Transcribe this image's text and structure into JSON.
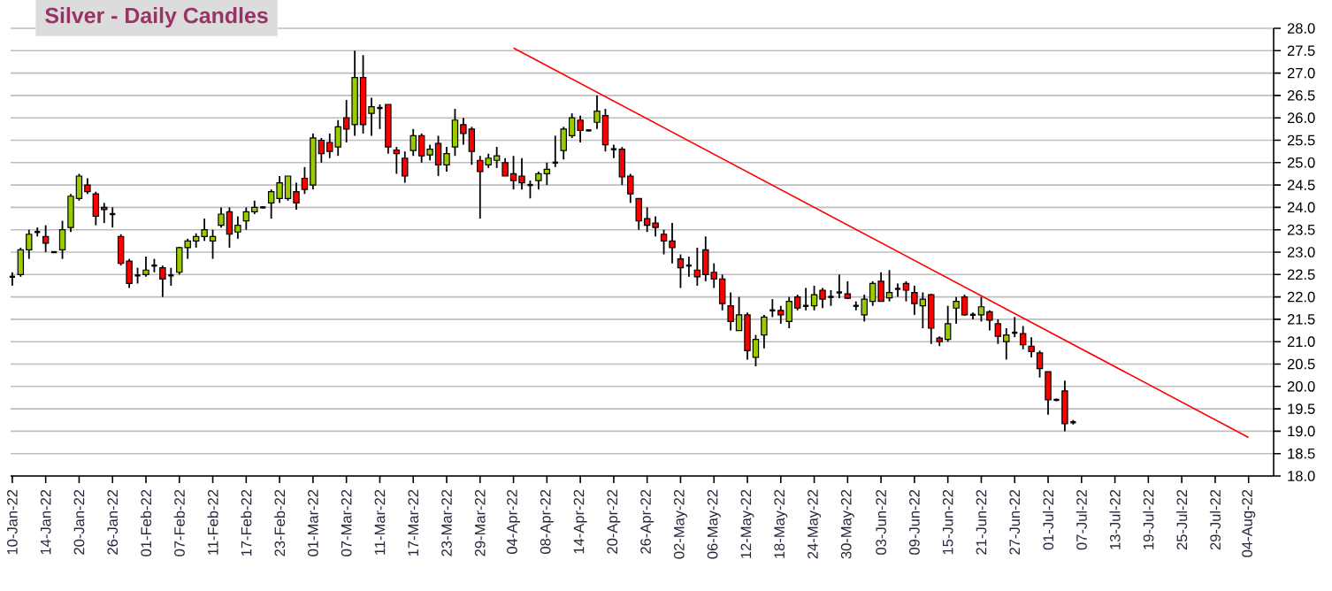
{
  "chart_data": {
    "type": "candlestick",
    "title": "Silver - Daily Candles",
    "categories": [
      "10-Jan-22",
      null,
      null,
      null,
      "14-Jan-22",
      null,
      null,
      null,
      "20-Jan-22",
      null,
      null,
      null,
      "26-Jan-22",
      null,
      null,
      null,
      "01-Feb-22",
      null,
      null,
      null,
      "07-Feb-22",
      null,
      null,
      null,
      "11-Feb-22",
      null,
      null,
      null,
      "17-Feb-22",
      null,
      null,
      null,
      "23-Feb-22",
      null,
      null,
      null,
      "01-Mar-22",
      null,
      null,
      null,
      "07-Mar-22",
      null,
      null,
      null,
      "11-Mar-22",
      null,
      null,
      null,
      "17-Mar-22",
      null,
      null,
      null,
      "23-Mar-22",
      null,
      null,
      null,
      "29-Mar-22",
      null,
      null,
      null,
      "04-Apr-22",
      null,
      null,
      null,
      "08-Apr-22",
      null,
      null,
      null,
      "14-Apr-22",
      null,
      null,
      null,
      "20-Apr-22",
      null,
      null,
      null,
      "26-Apr-22",
      null,
      null,
      null,
      "02-May-22",
      null,
      null,
      null,
      "06-May-22",
      null,
      null,
      null,
      "12-May-22",
      null,
      null,
      null,
      "18-May-22",
      null,
      null,
      null,
      "24-May-22",
      null,
      null,
      null,
      "30-May-22",
      null,
      null,
      null,
      "03-Jun-22",
      null,
      null,
      null,
      "09-Jun-22",
      null,
      null,
      null,
      "15-Jun-22",
      null,
      null,
      null,
      "21-Jun-22",
      null,
      null,
      null,
      "27-Jun-22",
      null,
      null,
      null,
      "01-Jul-22",
      null,
      null,
      null,
      "07-Jul-22",
      null,
      null,
      null,
      "13-Jul-22",
      null,
      null,
      null,
      "19-Jul-22",
      null,
      null,
      null,
      "25-Jul-22",
      null,
      null,
      null,
      "29-Jul-22",
      null,
      null,
      null,
      "04-Aug-22"
    ],
    "ohlc": [
      [
        22.45,
        22.55,
        22.25,
        22.45
      ],
      [
        22.5,
        23.1,
        22.45,
        23.05
      ],
      [
        23.05,
        23.5,
        22.85,
        23.4
      ],
      [
        23.45,
        23.55,
        23.35,
        23.45
      ],
      [
        23.35,
        23.6,
        23.0,
        23.2
      ],
      [
        23.0,
        23.02,
        22.98,
        23.0
      ],
      [
        23.05,
        23.7,
        22.85,
        23.5
      ],
      [
        23.55,
        24.3,
        23.45,
        24.25
      ],
      [
        24.2,
        24.75,
        24.15,
        24.7
      ],
      [
        24.5,
        24.65,
        24.3,
        24.35
      ],
      [
        24.3,
        24.35,
        23.6,
        23.8
      ],
      [
        24.0,
        24.1,
        23.65,
        23.95
      ],
      [
        23.85,
        24.0,
        23.55,
        23.85
      ],
      [
        23.35,
        23.4,
        22.7,
        22.75
      ],
      [
        22.8,
        22.85,
        22.2,
        22.3
      ],
      [
        22.48,
        22.65,
        22.3,
        22.48
      ],
      [
        22.5,
        22.9,
        22.45,
        22.6
      ],
      [
        22.7,
        22.85,
        22.55,
        22.7
      ],
      [
        22.65,
        22.7,
        22.0,
        22.4
      ],
      [
        22.48,
        22.65,
        22.25,
        22.48
      ],
      [
        22.55,
        23.12,
        22.5,
        23.1
      ],
      [
        23.1,
        23.3,
        22.85,
        23.25
      ],
      [
        23.25,
        23.42,
        23.1,
        23.35
      ],
      [
        23.35,
        23.75,
        23.25,
        23.5
      ],
      [
        23.25,
        23.5,
        22.85,
        23.35
      ],
      [
        23.6,
        24.0,
        23.55,
        23.85
      ],
      [
        23.9,
        24.0,
        23.1,
        23.4
      ],
      [
        23.45,
        23.8,
        23.3,
        23.6
      ],
      [
        23.7,
        24.0,
        23.5,
        23.9
      ],
      [
        23.9,
        24.15,
        23.85,
        24.0
      ],
      [
        24.0,
        24.02,
        23.98,
        24.0
      ],
      [
        24.1,
        24.4,
        23.75,
        24.35
      ],
      [
        24.2,
        24.7,
        24.1,
        24.55
      ],
      [
        24.2,
        24.7,
        24.15,
        24.7
      ],
      [
        24.35,
        24.55,
        23.95,
        24.1
      ],
      [
        24.65,
        24.9,
        24.3,
        24.4
      ],
      [
        24.5,
        25.65,
        24.4,
        25.55
      ],
      [
        25.5,
        25.55,
        25.0,
        25.2
      ],
      [
        25.45,
        25.65,
        25.1,
        25.25
      ],
      [
        25.35,
        25.95,
        25.15,
        25.8
      ],
      [
        26.0,
        26.4,
        25.45,
        25.75
      ],
      [
        25.85,
        27.5,
        25.6,
        26.9
      ],
      [
        26.9,
        27.4,
        25.65,
        25.85
      ],
      [
        26.1,
        26.45,
        25.6,
        26.25
      ],
      [
        26.22,
        26.3,
        25.75,
        26.22
      ],
      [
        26.3,
        26.3,
        25.2,
        25.35
      ],
      [
        25.28,
        25.35,
        24.75,
        25.2
      ],
      [
        25.1,
        25.25,
        24.55,
        24.7
      ],
      [
        25.27,
        25.75,
        25.15,
        25.6
      ],
      [
        25.6,
        25.65,
        25.0,
        25.15
      ],
      [
        25.17,
        25.4,
        25.05,
        25.3
      ],
      [
        25.43,
        25.6,
        24.7,
        24.95
      ],
      [
        24.95,
        25.35,
        24.8,
        25.2
      ],
      [
        25.35,
        26.2,
        25.15,
        25.95
      ],
      [
        25.85,
        26.0,
        25.4,
        25.65
      ],
      [
        25.75,
        25.8,
        24.95,
        25.25
      ],
      [
        25.05,
        25.15,
        23.75,
        24.8
      ],
      [
        24.95,
        25.2,
        24.88,
        25.1
      ],
      [
        25.05,
        25.35,
        24.88,
        25.15
      ],
      [
        25.0,
        25.1,
        24.7,
        24.7
      ],
      [
        24.75,
        25.15,
        24.4,
        24.6
      ],
      [
        24.7,
        25.1,
        24.4,
        24.55
      ],
      [
        24.5,
        24.6,
        24.2,
        24.5
      ],
      [
        24.6,
        24.8,
        24.4,
        24.75
      ],
      [
        24.75,
        25.0,
        24.5,
        24.85
      ],
      [
        25.0,
        25.6,
        24.9,
        25.0
      ],
      [
        25.27,
        25.8,
        25.07,
        25.75
      ],
      [
        25.6,
        26.1,
        25.55,
        26.0
      ],
      [
        25.95,
        26.05,
        25.45,
        25.72
      ],
      [
        25.72,
        25.74,
        25.7,
        25.72
      ],
      [
        25.9,
        26.5,
        25.75,
        26.15
      ],
      [
        26.05,
        26.2,
        25.25,
        25.4
      ],
      [
        25.3,
        25.4,
        25.1,
        25.3
      ],
      [
        25.3,
        25.35,
        24.5,
        24.68
      ],
      [
        24.7,
        24.75,
        24.1,
        24.3
      ],
      [
        24.2,
        24.2,
        23.5,
        23.7
      ],
      [
        23.75,
        24.0,
        23.45,
        23.6
      ],
      [
        23.65,
        23.8,
        23.35,
        23.55
      ],
      [
        23.4,
        23.5,
        22.95,
        23.25
      ],
      [
        23.25,
        23.65,
        22.75,
        23.1
      ],
      [
        22.85,
        22.95,
        22.2,
        22.65
      ],
      [
        22.7,
        22.9,
        22.45,
        22.7
      ],
      [
        22.6,
        23.1,
        22.25,
        22.45
      ],
      [
        23.05,
        23.35,
        22.35,
        22.5
      ],
      [
        22.55,
        22.75,
        22.2,
        22.4
      ],
      [
        22.4,
        22.5,
        21.7,
        21.85
      ],
      [
        21.8,
        22.1,
        21.25,
        21.45
      ],
      [
        21.25,
        22.0,
        21.25,
        21.6
      ],
      [
        21.6,
        21.65,
        20.6,
        20.8
      ],
      [
        20.65,
        21.15,
        20.45,
        21.05
      ],
      [
        21.15,
        21.6,
        20.85,
        21.55
      ],
      [
        21.7,
        21.95,
        21.55,
        21.7
      ],
      [
        21.7,
        21.8,
        21.4,
        21.6
      ],
      [
        21.45,
        22.0,
        21.3,
        21.9
      ],
      [
        22.0,
        22.05,
        21.7,
        21.75
      ],
      [
        21.8,
        22.2,
        21.7,
        21.8
      ],
      [
        21.8,
        22.25,
        21.7,
        22.05
      ],
      [
        22.15,
        22.2,
        21.75,
        21.95
      ],
      [
        22.0,
        22.15,
        21.8,
        22.0
      ],
      [
        22.1,
        22.5,
        21.97,
        22.1
      ],
      [
        22.07,
        22.35,
        21.95,
        21.97
      ],
      [
        21.8,
        21.9,
        21.7,
        21.8
      ],
      [
        21.6,
        22.05,
        21.45,
        21.95
      ],
      [
        21.9,
        22.35,
        21.8,
        22.3
      ],
      [
        22.35,
        22.55,
        21.9,
        21.9
      ],
      [
        21.98,
        22.6,
        21.9,
        22.1
      ],
      [
        22.18,
        22.3,
        22.0,
        22.18
      ],
      [
        22.3,
        22.35,
        21.9,
        22.15
      ],
      [
        22.1,
        22.25,
        21.6,
        21.85
      ],
      [
        21.8,
        22.1,
        21.3,
        21.95
      ],
      [
        22.05,
        22.07,
        20.95,
        21.3
      ],
      [
        21.08,
        21.12,
        20.9,
        21.0
      ],
      [
        21.05,
        21.8,
        21.0,
        21.4
      ],
      [
        21.75,
        22.0,
        21.4,
        21.9
      ],
      [
        22.0,
        22.05,
        21.58,
        21.6
      ],
      [
        21.6,
        21.65,
        21.5,
        21.6
      ],
      [
        21.6,
        22.0,
        21.45,
        21.78
      ],
      [
        21.67,
        21.7,
        21.25,
        21.48
      ],
      [
        21.4,
        21.5,
        20.95,
        21.12
      ],
      [
        21.0,
        21.3,
        20.6,
        21.15
      ],
      [
        21.2,
        21.55,
        21.1,
        21.2
      ],
      [
        21.18,
        21.35,
        20.83,
        20.93
      ],
      [
        20.9,
        21.1,
        20.65,
        20.78
      ],
      [
        20.75,
        20.8,
        20.2,
        20.4
      ],
      [
        20.33,
        20.33,
        19.37,
        19.7
      ],
      [
        19.7,
        19.73,
        19.67,
        19.7
      ],
      [
        19.9,
        20.13,
        19.0,
        19.17
      ],
      [
        19.2,
        19.25,
        19.15,
        19.2
      ],
      null,
      null,
      null,
      null,
      null,
      null,
      null,
      null,
      null,
      null,
      null,
      null,
      null,
      null,
      null,
      null,
      null,
      null,
      null,
      null,
      null
    ],
    "series": [
      {
        "type": "line",
        "color": "#ff0000",
        "x": [
          "04-Apr-22",
          "04-Aug-22"
        ],
        "values": [
          27.56,
          18.86
        ]
      }
    ],
    "ylim": [
      18,
      28
    ],
    "yticks": [
      {
        "value": 18,
        "label": "18.0"
      },
      {
        "value": 18.5,
        "label": "18.5"
      },
      {
        "value": 19,
        "label": "19.0"
      },
      {
        "value": 19.5,
        "label": "19.5"
      },
      {
        "value": 20,
        "label": "20.0"
      },
      {
        "value": 20.5,
        "label": "20.5"
      },
      {
        "value": 21,
        "label": "21.0"
      },
      {
        "value": 21.5,
        "label": "21.5"
      },
      {
        "value": 22,
        "label": "22.0"
      },
      {
        "value": 22.5,
        "label": "22.5"
      },
      {
        "value": 23,
        "label": "23.0"
      },
      {
        "value": 23.5,
        "label": "23.5"
      },
      {
        "value": 24,
        "label": "24.0"
      },
      {
        "value": 24.5,
        "label": "24.5"
      },
      {
        "value": 25,
        "label": "25.0"
      },
      {
        "value": 25.5,
        "label": "25.5"
      },
      {
        "value": 26,
        "label": "26.0"
      },
      {
        "value": 26.5,
        "label": "26.5"
      },
      {
        "value": 27,
        "label": "27.0"
      },
      {
        "value": 27.5,
        "label": "27.5"
      },
      {
        "value": 28,
        "label": "28.0"
      }
    ],
    "grid": "y"
  }
}
